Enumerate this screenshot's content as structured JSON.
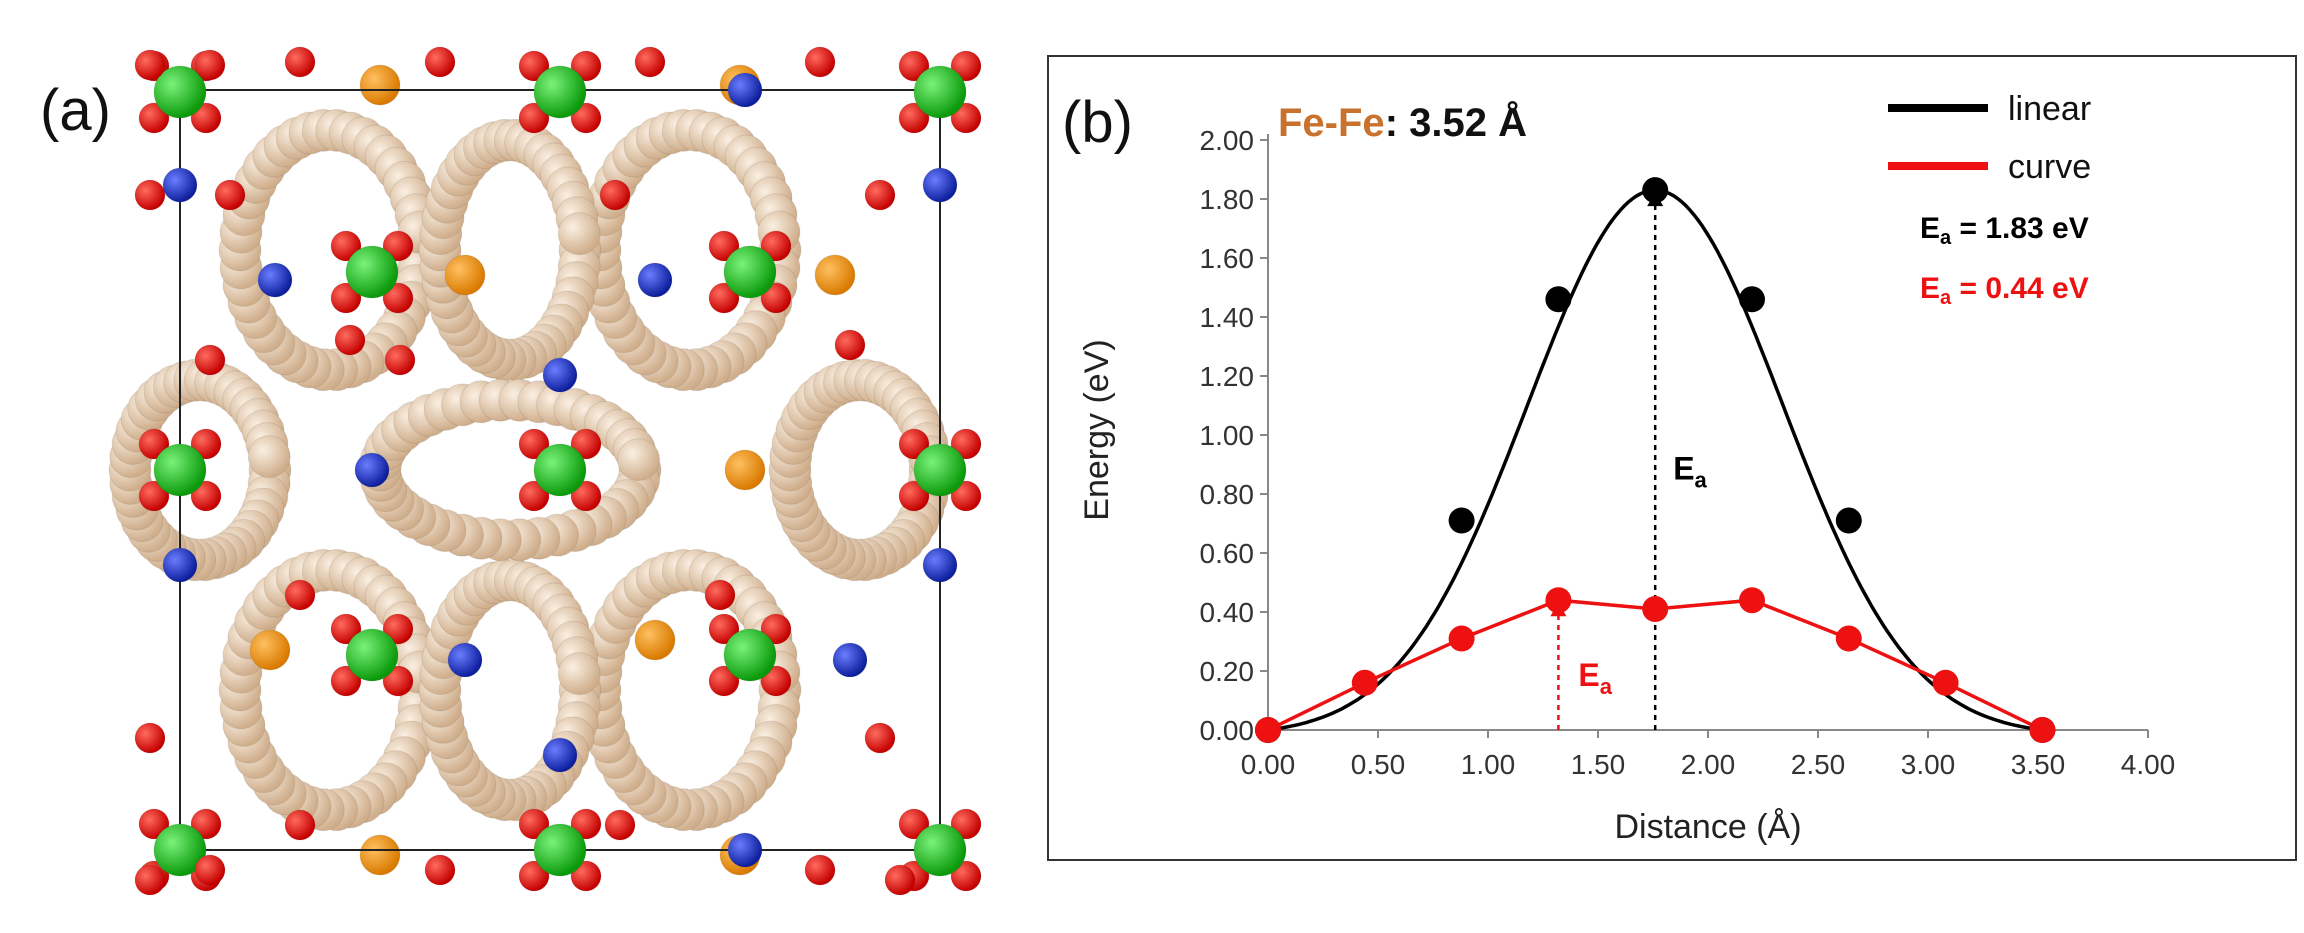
{
  "panel_a": {
    "label": "(a)"
  },
  "panel_b": {
    "label": "(b)"
  },
  "chart_data": {
    "type": "line",
    "title_prefix": "Fe-Fe",
    "title_sep": ": ",
    "title_value": "3.52 Å",
    "xlabel": "Distance (Å)",
    "ylabel": "Energy (eV)",
    "xlim": [
      0,
      4
    ],
    "ylim": [
      0,
      2
    ],
    "xticks": [
      "0.00",
      "0.50",
      "1.00",
      "1.50",
      "2.00",
      "2.50",
      "3.00",
      "3.50",
      "4.00"
    ],
    "yticks": [
      "0.00",
      "0.20",
      "0.40",
      "0.60",
      "0.80",
      "1.00",
      "1.20",
      "1.40",
      "1.60",
      "1.80",
      "2.00"
    ],
    "series": [
      {
        "name": "linear",
        "color": "#000000",
        "x": [
          0.0,
          0.88,
          1.32,
          1.76,
          2.2,
          2.64,
          3.52
        ],
        "y": [
          0.0,
          0.71,
          1.46,
          1.83,
          1.46,
          0.71,
          0.0
        ],
        "smooth": "gaussian"
      },
      {
        "name": "curve",
        "color": "#ee1111",
        "x": [
          0.0,
          0.44,
          0.88,
          1.32,
          1.76,
          2.2,
          2.64,
          3.08,
          3.52
        ],
        "y": [
          0.0,
          0.16,
          0.31,
          0.44,
          0.41,
          0.44,
          0.31,
          0.16,
          0.0
        ]
      }
    ],
    "legend": [
      {
        "label": "linear",
        "color": "#000000"
      },
      {
        "label": "curve",
        "color": "#ee1111"
      }
    ],
    "annotations": [
      {
        "prefix": "E",
        "sub": "a",
        "suffix": " = 1.83 eV",
        "color": "#000000"
      },
      {
        "prefix": "E",
        "sub": "a",
        "suffix": " = 0.44 eV",
        "color": "#ee1111"
      }
    ],
    "arrows": [
      {
        "x": 1.76,
        "y_from": 0.0,
        "y_to": 1.83,
        "color": "#000000",
        "label": "E",
        "sub": "a"
      },
      {
        "x": 1.32,
        "y_from": 0.0,
        "y_to": 0.44,
        "color": "#ee1111",
        "label": "E",
        "sub": "a"
      }
    ]
  }
}
